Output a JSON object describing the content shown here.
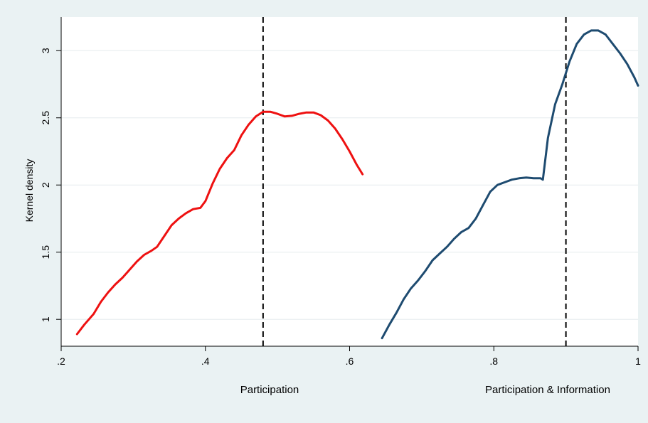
{
  "chart_data": {
    "type": "line",
    "ylabel": "Kernel density",
    "xlabels": [
      "Participation",
      "Participation & Information"
    ],
    "xlim": [
      0.2,
      1.0
    ],
    "ylim": [
      0.8,
      3.25
    ],
    "x_ticks": [
      {
        "value": 0.2,
        "label": ".2"
      },
      {
        "value": 0.4,
        "label": ".4"
      },
      {
        "value": 0.6,
        "label": ".6"
      },
      {
        "value": 0.8,
        "label": ".8"
      },
      {
        "value": 1.0,
        "label": "1"
      }
    ],
    "y_ticks": [
      {
        "value": 1,
        "label": "1"
      },
      {
        "value": 1.5,
        "label": "1.5"
      },
      {
        "value": 2,
        "label": "2"
      },
      {
        "value": 2.5,
        "label": "2.5"
      },
      {
        "value": 3,
        "label": "3"
      }
    ],
    "grid": true,
    "series": [
      {
        "color": "#ee1111",
        "x": [
          0.222,
          0.232,
          0.245,
          0.255,
          0.265,
          0.275,
          0.285,
          0.295,
          0.305,
          0.315,
          0.325,
          0.333,
          0.343,
          0.353,
          0.363,
          0.373,
          0.383,
          0.393,
          0.4,
          0.41,
          0.42,
          0.43,
          0.44,
          0.45,
          0.46,
          0.47,
          0.48,
          0.49,
          0.5,
          0.51,
          0.52,
          0.53,
          0.54,
          0.55,
          0.56,
          0.57,
          0.58,
          0.59,
          0.6,
          0.61,
          0.618
        ],
        "y": [
          0.89,
          0.96,
          1.04,
          1.13,
          1.2,
          1.26,
          1.31,
          1.37,
          1.43,
          1.48,
          1.51,
          1.54,
          1.62,
          1.7,
          1.75,
          1.79,
          1.82,
          1.83,
          1.88,
          2.01,
          2.12,
          2.2,
          2.26,
          2.37,
          2.45,
          2.51,
          2.545,
          2.545,
          2.53,
          2.51,
          2.515,
          2.53,
          2.54,
          2.54,
          2.52,
          2.48,
          2.42,
          2.34,
          2.25,
          2.15,
          2.08
        ]
      },
      {
        "color": "#1e4b70",
        "x": [
          0.645,
          0.655,
          0.665,
          0.675,
          0.685,
          0.695,
          0.705,
          0.715,
          0.725,
          0.735,
          0.745,
          0.755,
          0.765,
          0.775,
          0.785,
          0.795,
          0.805,
          0.815,
          0.825,
          0.835,
          0.845,
          0.855,
          0.865,
          0.868,
          0.875,
          0.885,
          0.895,
          0.905,
          0.915,
          0.925,
          0.935,
          0.945,
          0.955,
          0.965,
          0.975,
          0.985,
          0.995,
          1.0
        ],
        "y": [
          0.86,
          0.96,
          1.05,
          1.15,
          1.23,
          1.29,
          1.36,
          1.44,
          1.49,
          1.54,
          1.6,
          1.65,
          1.68,
          1.75,
          1.85,
          1.95,
          2.0,
          2.02,
          2.04,
          2.05,
          2.055,
          2.05,
          2.05,
          2.04,
          2.35,
          2.6,
          2.75,
          2.92,
          3.05,
          3.12,
          3.15,
          3.15,
          3.12,
          3.05,
          2.98,
          2.9,
          2.8,
          2.74
        ]
      }
    ],
    "reference_lines": [
      {
        "axis": "x",
        "value": 0.48,
        "style": "dashed"
      },
      {
        "axis": "x",
        "value": 0.9,
        "style": "dashed"
      }
    ]
  }
}
